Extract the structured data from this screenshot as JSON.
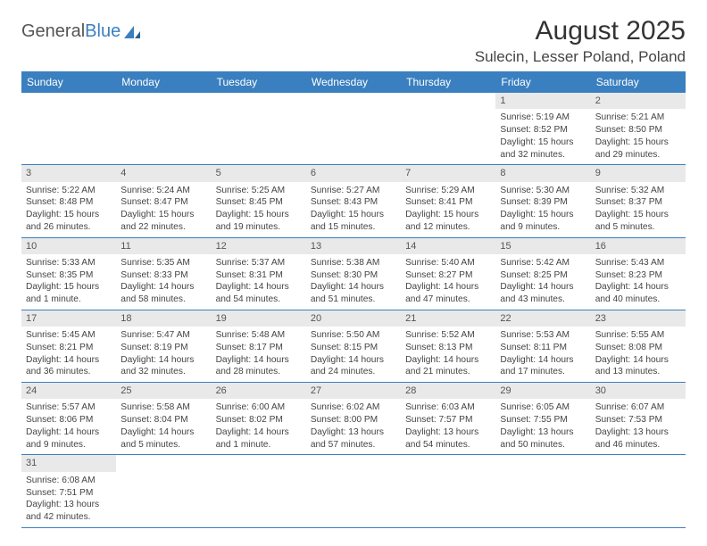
{
  "logo": {
    "text1": "General",
    "text2": "Blue"
  },
  "title": "August 2025",
  "location": "Sulecin, Lesser Poland, Poland",
  "colors": {
    "header_bg": "#3a7fbf",
    "header_text": "#ffffff",
    "daynum_bg": "#e9e9e9",
    "border": "#3a7fbf"
  },
  "weekdays": [
    "Sunday",
    "Monday",
    "Tuesday",
    "Wednesday",
    "Thursday",
    "Friday",
    "Saturday"
  ],
  "weeks": [
    [
      {
        "num": "",
        "sunrise": "",
        "sunset": "",
        "daylight": ""
      },
      {
        "num": "",
        "sunrise": "",
        "sunset": "",
        "daylight": ""
      },
      {
        "num": "",
        "sunrise": "",
        "sunset": "",
        "daylight": ""
      },
      {
        "num": "",
        "sunrise": "",
        "sunset": "",
        "daylight": ""
      },
      {
        "num": "",
        "sunrise": "",
        "sunset": "",
        "daylight": ""
      },
      {
        "num": "1",
        "sunrise": "Sunrise: 5:19 AM",
        "sunset": "Sunset: 8:52 PM",
        "daylight": "Daylight: 15 hours and 32 minutes."
      },
      {
        "num": "2",
        "sunrise": "Sunrise: 5:21 AM",
        "sunset": "Sunset: 8:50 PM",
        "daylight": "Daylight: 15 hours and 29 minutes."
      }
    ],
    [
      {
        "num": "3",
        "sunrise": "Sunrise: 5:22 AM",
        "sunset": "Sunset: 8:48 PM",
        "daylight": "Daylight: 15 hours and 26 minutes."
      },
      {
        "num": "4",
        "sunrise": "Sunrise: 5:24 AM",
        "sunset": "Sunset: 8:47 PM",
        "daylight": "Daylight: 15 hours and 22 minutes."
      },
      {
        "num": "5",
        "sunrise": "Sunrise: 5:25 AM",
        "sunset": "Sunset: 8:45 PM",
        "daylight": "Daylight: 15 hours and 19 minutes."
      },
      {
        "num": "6",
        "sunrise": "Sunrise: 5:27 AM",
        "sunset": "Sunset: 8:43 PM",
        "daylight": "Daylight: 15 hours and 15 minutes."
      },
      {
        "num": "7",
        "sunrise": "Sunrise: 5:29 AM",
        "sunset": "Sunset: 8:41 PM",
        "daylight": "Daylight: 15 hours and 12 minutes."
      },
      {
        "num": "8",
        "sunrise": "Sunrise: 5:30 AM",
        "sunset": "Sunset: 8:39 PM",
        "daylight": "Daylight: 15 hours and 9 minutes."
      },
      {
        "num": "9",
        "sunrise": "Sunrise: 5:32 AM",
        "sunset": "Sunset: 8:37 PM",
        "daylight": "Daylight: 15 hours and 5 minutes."
      }
    ],
    [
      {
        "num": "10",
        "sunrise": "Sunrise: 5:33 AM",
        "sunset": "Sunset: 8:35 PM",
        "daylight": "Daylight: 15 hours and 1 minute."
      },
      {
        "num": "11",
        "sunrise": "Sunrise: 5:35 AM",
        "sunset": "Sunset: 8:33 PM",
        "daylight": "Daylight: 14 hours and 58 minutes."
      },
      {
        "num": "12",
        "sunrise": "Sunrise: 5:37 AM",
        "sunset": "Sunset: 8:31 PM",
        "daylight": "Daylight: 14 hours and 54 minutes."
      },
      {
        "num": "13",
        "sunrise": "Sunrise: 5:38 AM",
        "sunset": "Sunset: 8:30 PM",
        "daylight": "Daylight: 14 hours and 51 minutes."
      },
      {
        "num": "14",
        "sunrise": "Sunrise: 5:40 AM",
        "sunset": "Sunset: 8:27 PM",
        "daylight": "Daylight: 14 hours and 47 minutes."
      },
      {
        "num": "15",
        "sunrise": "Sunrise: 5:42 AM",
        "sunset": "Sunset: 8:25 PM",
        "daylight": "Daylight: 14 hours and 43 minutes."
      },
      {
        "num": "16",
        "sunrise": "Sunrise: 5:43 AM",
        "sunset": "Sunset: 8:23 PM",
        "daylight": "Daylight: 14 hours and 40 minutes."
      }
    ],
    [
      {
        "num": "17",
        "sunrise": "Sunrise: 5:45 AM",
        "sunset": "Sunset: 8:21 PM",
        "daylight": "Daylight: 14 hours and 36 minutes."
      },
      {
        "num": "18",
        "sunrise": "Sunrise: 5:47 AM",
        "sunset": "Sunset: 8:19 PM",
        "daylight": "Daylight: 14 hours and 32 minutes."
      },
      {
        "num": "19",
        "sunrise": "Sunrise: 5:48 AM",
        "sunset": "Sunset: 8:17 PM",
        "daylight": "Daylight: 14 hours and 28 minutes."
      },
      {
        "num": "20",
        "sunrise": "Sunrise: 5:50 AM",
        "sunset": "Sunset: 8:15 PM",
        "daylight": "Daylight: 14 hours and 24 minutes."
      },
      {
        "num": "21",
        "sunrise": "Sunrise: 5:52 AM",
        "sunset": "Sunset: 8:13 PM",
        "daylight": "Daylight: 14 hours and 21 minutes."
      },
      {
        "num": "22",
        "sunrise": "Sunrise: 5:53 AM",
        "sunset": "Sunset: 8:11 PM",
        "daylight": "Daylight: 14 hours and 17 minutes."
      },
      {
        "num": "23",
        "sunrise": "Sunrise: 5:55 AM",
        "sunset": "Sunset: 8:08 PM",
        "daylight": "Daylight: 14 hours and 13 minutes."
      }
    ],
    [
      {
        "num": "24",
        "sunrise": "Sunrise: 5:57 AM",
        "sunset": "Sunset: 8:06 PM",
        "daylight": "Daylight: 14 hours and 9 minutes."
      },
      {
        "num": "25",
        "sunrise": "Sunrise: 5:58 AM",
        "sunset": "Sunset: 8:04 PM",
        "daylight": "Daylight: 14 hours and 5 minutes."
      },
      {
        "num": "26",
        "sunrise": "Sunrise: 6:00 AM",
        "sunset": "Sunset: 8:02 PM",
        "daylight": "Daylight: 14 hours and 1 minute."
      },
      {
        "num": "27",
        "sunrise": "Sunrise: 6:02 AM",
        "sunset": "Sunset: 8:00 PM",
        "daylight": "Daylight: 13 hours and 57 minutes."
      },
      {
        "num": "28",
        "sunrise": "Sunrise: 6:03 AM",
        "sunset": "Sunset: 7:57 PM",
        "daylight": "Daylight: 13 hours and 54 minutes."
      },
      {
        "num": "29",
        "sunrise": "Sunrise: 6:05 AM",
        "sunset": "Sunset: 7:55 PM",
        "daylight": "Daylight: 13 hours and 50 minutes."
      },
      {
        "num": "30",
        "sunrise": "Sunrise: 6:07 AM",
        "sunset": "Sunset: 7:53 PM",
        "daylight": "Daylight: 13 hours and 46 minutes."
      }
    ],
    [
      {
        "num": "31",
        "sunrise": "Sunrise: 6:08 AM",
        "sunset": "Sunset: 7:51 PM",
        "daylight": "Daylight: 13 hours and 42 minutes."
      },
      {
        "num": "",
        "sunrise": "",
        "sunset": "",
        "daylight": ""
      },
      {
        "num": "",
        "sunrise": "",
        "sunset": "",
        "daylight": ""
      },
      {
        "num": "",
        "sunrise": "",
        "sunset": "",
        "daylight": ""
      },
      {
        "num": "",
        "sunrise": "",
        "sunset": "",
        "daylight": ""
      },
      {
        "num": "",
        "sunrise": "",
        "sunset": "",
        "daylight": ""
      },
      {
        "num": "",
        "sunrise": "",
        "sunset": "",
        "daylight": ""
      }
    ]
  ]
}
